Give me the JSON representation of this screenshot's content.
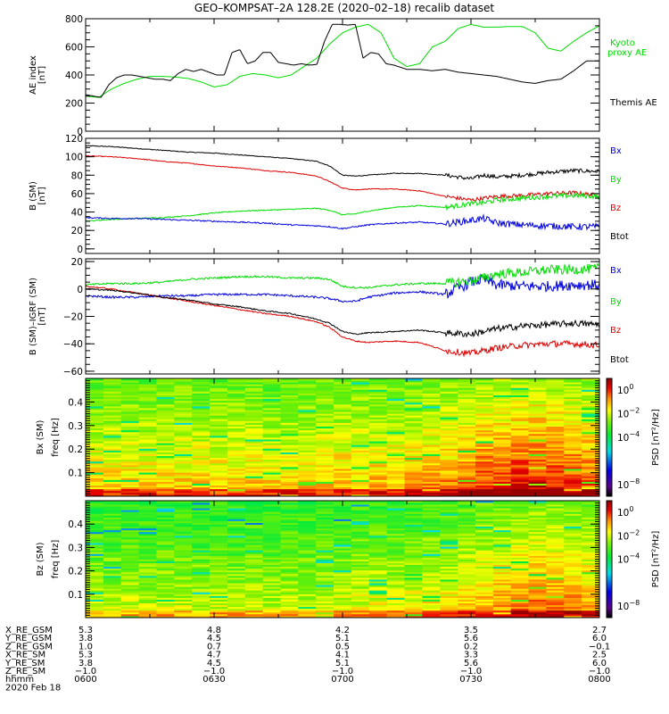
{
  "title": "GEO–KOMPSAT–2A 128.2E (2020–02–18) recalib dataset",
  "colors": {
    "black": "#000000",
    "green": "#00dd00",
    "blue": "#0000dd",
    "red": "#dd0000"
  },
  "chart_data": [
    {
      "type": "line",
      "panel": "ae",
      "ylabel_line1": "AE index",
      "ylabel_line2": "[nT]",
      "ylim": [
        0,
        800
      ],
      "yticks": [
        "0",
        "200",
        "400",
        "600",
        "800"
      ],
      "ytick_values": [
        0,
        200,
        400,
        600,
        800
      ],
      "x_hours": [
        6.0,
        8.0
      ],
      "series": [
        {
          "name": "Kyoto proxy AE",
          "legend_line1": "Kyoto",
          "legend_line2": "proxy AE",
          "color": "#00dd00",
          "x": [
            6.0,
            6.05,
            6.1,
            6.15,
            6.2,
            6.25,
            6.3,
            6.35,
            6.4,
            6.45,
            6.5,
            6.55,
            6.6,
            6.65,
            6.7,
            6.75,
            6.8,
            6.85,
            6.9,
            6.95,
            7.0,
            7.05,
            7.1,
            7.15,
            7.2,
            7.25,
            7.3,
            7.35,
            7.4,
            7.45,
            7.5,
            7.55,
            7.6,
            7.65,
            7.7,
            7.75,
            7.8,
            7.85,
            7.9,
            7.95,
            8.0
          ],
          "values": [
            250,
            240,
            300,
            340,
            370,
            390,
            390,
            385,
            375,
            350,
            315,
            330,
            390,
            410,
            400,
            380,
            400,
            460,
            520,
            620,
            700,
            740,
            760,
            700,
            520,
            460,
            480,
            600,
            640,
            730,
            760,
            740,
            740,
            745,
            745,
            700,
            590,
            570,
            640,
            700,
            750
          ]
        },
        {
          "name": "Themis AE",
          "legend_line1": "Themis AE",
          "color": "#000000",
          "x": [
            6.0,
            6.03,
            6.06,
            6.09,
            6.12,
            6.15,
            6.18,
            6.21,
            6.24,
            6.27,
            6.3,
            6.33,
            6.36,
            6.39,
            6.42,
            6.45,
            6.48,
            6.51,
            6.54,
            6.57,
            6.6,
            6.63,
            6.66,
            6.69,
            6.72,
            6.75,
            6.78,
            6.81,
            6.84,
            6.87,
            6.9,
            6.93,
            6.96,
            6.99,
            7.02,
            7.05,
            7.08,
            7.11,
            7.14,
            7.17,
            7.2,
            7.25,
            7.3,
            7.35,
            7.4,
            7.45,
            7.5,
            7.55,
            7.6,
            7.65,
            7.7,
            7.75,
            7.8,
            7.85,
            7.9,
            7.95,
            8.0
          ],
          "values": [
            260,
            250,
            240,
            330,
            380,
            400,
            400,
            390,
            380,
            370,
            370,
            360,
            410,
            440,
            425,
            440,
            420,
            400,
            400,
            560,
            580,
            480,
            500,
            560,
            560,
            490,
            480,
            470,
            480,
            470,
            475,
            640,
            760,
            760,
            755,
            760,
            520,
            560,
            550,
            480,
            470,
            440,
            440,
            430,
            440,
            420,
            410,
            400,
            390,
            370,
            350,
            340,
            360,
            370,
            430,
            500,
            500
          ]
        }
      ]
    },
    {
      "type": "line",
      "panel": "b-sm",
      "ylabel_line1": "B (SM)",
      "ylabel_line2": "[nT]",
      "ylim": [
        -5,
        120
      ],
      "yticks": [
        "0",
        "20",
        "40",
        "60",
        "80",
        "100",
        "120"
      ],
      "ytick_values": [
        0,
        20,
        40,
        60,
        80,
        100,
        120
      ],
      "series": [
        {
          "name": "Btot",
          "legend": "Btot",
          "color": "#000000",
          "noise": 1.2,
          "x": [
            6.0,
            6.1,
            6.2,
            6.3,
            6.4,
            6.5,
            6.6,
            6.7,
            6.8,
            6.9,
            6.95,
            7.0,
            7.05,
            7.1,
            7.2,
            7.3,
            7.4,
            7.5,
            7.55,
            7.6,
            7.7,
            7.8,
            7.9,
            8.0
          ],
          "values": [
            112,
            111,
            109,
            107,
            105,
            104,
            102,
            100,
            98,
            95,
            90,
            80,
            79,
            80,
            82,
            82,
            80,
            76,
            80,
            78,
            80,
            83,
            85,
            84
          ]
        },
        {
          "name": "Bz",
          "legend": "Bz",
          "color": "#dd0000",
          "noise": 1.2,
          "x": [
            6.0,
            6.1,
            6.2,
            6.3,
            6.4,
            6.5,
            6.6,
            6.7,
            6.8,
            6.9,
            6.95,
            7.0,
            7.05,
            7.1,
            7.2,
            7.3,
            7.4,
            7.5,
            7.55,
            7.6,
            7.7,
            7.8,
            7.9,
            8.0
          ],
          "values": [
            101,
            100,
            98,
            95,
            93,
            90,
            88,
            85,
            83,
            79,
            73,
            66,
            64,
            65,
            65,
            63,
            57,
            53,
            55,
            57,
            58,
            60,
            61,
            58
          ]
        },
        {
          "name": "By",
          "legend": "By",
          "color": "#00dd00",
          "noise": 1.5,
          "x": [
            6.0,
            6.1,
            6.2,
            6.3,
            6.4,
            6.5,
            6.6,
            6.7,
            6.8,
            6.9,
            6.95,
            7.0,
            7.05,
            7.1,
            7.2,
            7.3,
            7.4,
            7.5,
            7.55,
            7.6,
            7.7,
            7.8,
            7.9,
            8.0
          ],
          "values": [
            30,
            32,
            33,
            34,
            36,
            39,
            41,
            42,
            43,
            44,
            42,
            37,
            38,
            41,
            45,
            47,
            45,
            49,
            50,
            53,
            55,
            57,
            58,
            57
          ]
        },
        {
          "name": "Bx",
          "legend": "Bx",
          "color": "#0000dd",
          "noise": 2.0,
          "x": [
            6.0,
            6.1,
            6.2,
            6.3,
            6.4,
            6.5,
            6.6,
            6.7,
            6.8,
            6.9,
            6.95,
            7.0,
            7.05,
            7.1,
            7.2,
            7.3,
            7.4,
            7.5,
            7.55,
            7.6,
            7.7,
            7.8,
            7.9,
            8.0
          ],
          "values": [
            34,
            33,
            33,
            32,
            31,
            30,
            29,
            28,
            26,
            25,
            24,
            22,
            24,
            26,
            28,
            29,
            27,
            31,
            33,
            28,
            26,
            25,
            24,
            24
          ]
        }
      ]
    },
    {
      "type": "line",
      "panel": "b-sm-minus-igrf",
      "ylabel_line1": "B (SM)–IGRF (SM)",
      "ylabel_line2": "[nT]",
      "ylim": [
        -62,
        22
      ],
      "yticks": [
        "−60",
        "−40",
        "−20",
        "0",
        "20"
      ],
      "ytick_values": [
        -60,
        -40,
        -20,
        0,
        20
      ],
      "series": [
        {
          "name": "Bx",
          "legend": "Bx",
          "color": "#0000dd",
          "noise": 2.2,
          "x": [
            6.0,
            6.1,
            6.2,
            6.3,
            6.4,
            6.5,
            6.6,
            6.7,
            6.8,
            6.9,
            6.95,
            7.0,
            7.05,
            7.1,
            7.2,
            7.3,
            7.4,
            7.5,
            7.55,
            7.6,
            7.7,
            7.8,
            7.9,
            8.0
          ],
          "values": [
            -5,
            -6,
            -6,
            -5,
            -5,
            -4,
            -4,
            -4,
            -5,
            -6,
            -7,
            -9,
            -9,
            -6,
            -3,
            -2,
            -4,
            5,
            7,
            3,
            2,
            2,
            3,
            3
          ]
        },
        {
          "name": "By",
          "legend": "By",
          "color": "#00dd00",
          "noise": 2.0,
          "x": [
            6.0,
            6.1,
            6.2,
            6.3,
            6.4,
            6.5,
            6.6,
            6.7,
            6.8,
            6.9,
            6.95,
            7.0,
            7.05,
            7.1,
            7.2,
            7.3,
            7.4,
            7.5,
            7.55,
            7.6,
            7.7,
            7.8,
            7.9,
            8.0
          ],
          "values": [
            3,
            4,
            4,
            5,
            7,
            8,
            9,
            9,
            8,
            8,
            7,
            2,
            1,
            1,
            3,
            4,
            4,
            6,
            8,
            11,
            12,
            14,
            14,
            15
          ]
        },
        {
          "name": "Bz",
          "legend": "Bz",
          "color": "#dd0000",
          "noise": 1.3,
          "x": [
            6.0,
            6.1,
            6.2,
            6.3,
            6.4,
            6.5,
            6.6,
            6.7,
            6.8,
            6.9,
            6.95,
            7.0,
            7.05,
            7.1,
            7.2,
            7.3,
            7.4,
            7.5,
            7.55,
            7.6,
            7.7,
            7.8,
            7.9,
            8.0
          ],
          "values": [
            2,
            0,
            -3,
            -6,
            -9,
            -12,
            -15,
            -18,
            -20,
            -24,
            -28,
            -35,
            -38,
            -39,
            -38,
            -39,
            -45,
            -47,
            -45,
            -43,
            -41,
            -40,
            -40,
            -41
          ]
        },
        {
          "name": "Btot",
          "legend": "Btot",
          "color": "#000000",
          "noise": 1.3,
          "x": [
            6.0,
            6.1,
            6.2,
            6.3,
            6.4,
            6.5,
            6.6,
            6.7,
            6.8,
            6.9,
            6.95,
            7.0,
            7.05,
            7.1,
            7.2,
            7.3,
            7.4,
            7.5,
            7.55,
            7.6,
            7.7,
            7.8,
            7.9,
            8.0
          ],
          "values": [
            0,
            -1,
            -3,
            -6,
            -8,
            -11,
            -13,
            -16,
            -18,
            -22,
            -25,
            -31,
            -33,
            -32,
            -31,
            -30,
            -32,
            -33,
            -31,
            -29,
            -27,
            -26,
            -25,
            -26
          ]
        }
      ]
    },
    {
      "type": "heatmap",
      "panel": "bx-psd",
      "ylabel_line1": "Bx (SM)",
      "ylabel_line2": "freq [Hz]",
      "ylim": [
        0,
        0.5
      ],
      "yticks": [
        "0.1",
        "0.2",
        "0.3",
        "0.4"
      ],
      "ytick_values": [
        0.1,
        0.2,
        0.3,
        0.4
      ],
      "colorbar_label": "PSD [nT²/Hz]",
      "colorbar_ticks": [
        {
          "base": "10",
          "exp": "0"
        },
        {
          "base": "10",
          "exp": "−2"
        },
        {
          "base": "10",
          "exp": "−4"
        },
        {
          "base": "10",
          "exp": "−8"
        }
      ],
      "colorbar_tick_log_values": [
        0,
        -2,
        -4,
        -8
      ],
      "colorbar_log_range": [
        -9,
        1
      ],
      "time_bins": 29,
      "activity_by_time": [
        0.15,
        0.15,
        0.15,
        0.15,
        0.15,
        0.15,
        0.15,
        0.15,
        0.15,
        0.15,
        0.15,
        0.15,
        0.15,
        0.2,
        0.25,
        0.25,
        0.25,
        0.25,
        0.3,
        0.35,
        0.45,
        0.55,
        0.7,
        0.75,
        0.85,
        0.9,
        0.85,
        0.7,
        0.6
      ],
      "low_freq_log_psd": -1.0,
      "high_freq_log_psd": -3.0
    },
    {
      "type": "heatmap",
      "panel": "bz-psd",
      "ylabel_line1": "Bz (SM)",
      "ylabel_line2": "freq [Hz]",
      "ylim": [
        0,
        0.5
      ],
      "yticks": [
        "0.1",
        "0.2",
        "0.3",
        "0.4"
      ],
      "ytick_values": [
        0.1,
        0.2,
        0.3,
        0.4
      ],
      "colorbar_label": "PSD [nT²/Hz]",
      "colorbar_ticks": [
        {
          "base": "10",
          "exp": "0"
        },
        {
          "base": "10",
          "exp": "−2"
        },
        {
          "base": "10",
          "exp": "−4"
        },
        {
          "base": "10",
          "exp": "−8"
        }
      ],
      "colorbar_tick_log_values": [
        0,
        -2,
        -4,
        -8
      ],
      "colorbar_log_range": [
        -9,
        1
      ],
      "time_bins": 29,
      "activity_by_time": [
        0.0,
        0.0,
        0.0,
        0.0,
        0.0,
        0.0,
        0.0,
        0.0,
        0.0,
        0.0,
        0.0,
        0.0,
        0.0,
        0.05,
        0.1,
        0.15,
        0.15,
        0.15,
        0.2,
        0.25,
        0.3,
        0.4,
        0.55,
        0.65,
        0.75,
        0.8,
        0.8,
        0.7,
        0.6
      ],
      "low_freq_log_psd": -1.6,
      "high_freq_log_psd": -3.4
    }
  ],
  "ephemeris": {
    "labels": [
      "X_RE_GSM",
      "Y_RE_GSM",
      "Z_RE_GSM",
      "X_RE_SM",
      "Y_RE_SM",
      "Z_RE_SM",
      "hhmm"
    ],
    "columns": [
      [
        "5.3",
        "3.8",
        "1.0",
        "5.3",
        "3.8",
        "−1.0",
        "0600"
      ],
      [
        "4.8",
        "4.5",
        "0.7",
        "4.7",
        "4.5",
        "−1.0",
        "0630"
      ],
      [
        "4.2",
        "5.1",
        "0.5",
        "4.1",
        "5.1",
        "−1.0",
        "0700"
      ],
      [
        "3.5",
        "5.6",
        "0.2",
        "3.3",
        "5.6",
        "−1.0",
        "0730"
      ],
      [
        "2.7",
        "6.0",
        "−0.1",
        "2.5",
        "6.0",
        "−1.0",
        "0800"
      ]
    ],
    "date": "2020 Feb 18"
  }
}
